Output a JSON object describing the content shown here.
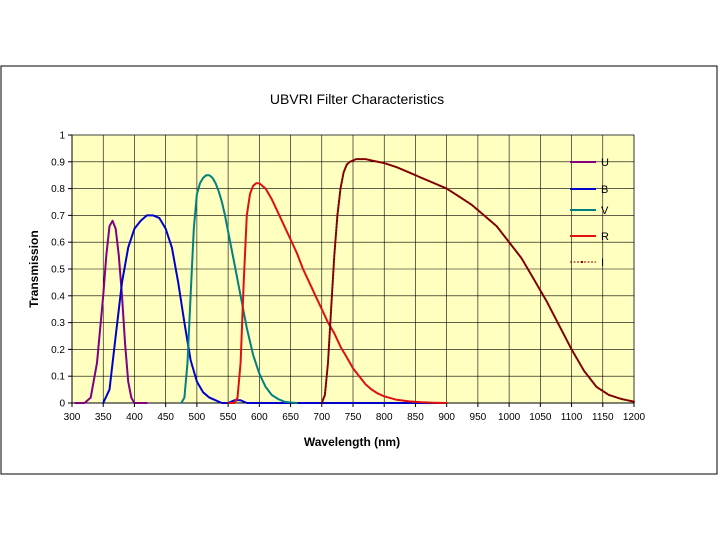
{
  "chart_data": {
    "type": "line",
    "title": "UBVRI Filter Characteristics",
    "xlabel": "Wavelength (nm)",
    "ylabel": "Transmission",
    "xlim": [
      300,
      1200
    ],
    "ylim": [
      0,
      1
    ],
    "x_ticks": [
      "300",
      "350",
      "400",
      "450",
      "500",
      "550",
      "600",
      "650",
      "700",
      "750",
      "800",
      "850",
      "900",
      "950",
      "1000",
      "1050",
      "1100",
      "1150",
      "1200"
    ],
    "y_ticks": [
      "0",
      "0.1",
      "0.2",
      "0.3",
      "0.4",
      "0.5",
      "0.6",
      "0.7",
      "0.8",
      "0.9",
      "1"
    ],
    "grid": true,
    "legend_position": "right",
    "series": [
      {
        "name": "U",
        "color": "#800080",
        "x": [
          305,
          320,
          330,
          340,
          350,
          355,
          360,
          365,
          370,
          375,
          380,
          385,
          390,
          395,
          400,
          410,
          420
        ],
        "y": [
          0,
          0,
          0.02,
          0.15,
          0.4,
          0.55,
          0.66,
          0.68,
          0.65,
          0.55,
          0.4,
          0.22,
          0.08,
          0.02,
          0,
          0,
          0
        ]
      },
      {
        "name": "B",
        "color": "#0000cc",
        "x": [
          350,
          360,
          370,
          380,
          390,
          400,
          410,
          420,
          430,
          440,
          450,
          460,
          470,
          480,
          490,
          500,
          510,
          520,
          530,
          540,
          550,
          560,
          570,
          580,
          600,
          700,
          800,
          900
        ],
        "y": [
          0,
          0.05,
          0.25,
          0.45,
          0.58,
          0.65,
          0.68,
          0.7,
          0.7,
          0.69,
          0.65,
          0.58,
          0.45,
          0.3,
          0.16,
          0.08,
          0.04,
          0.02,
          0.01,
          0,
          0,
          0.01,
          0.01,
          0,
          0,
          0,
          0,
          0
        ]
      },
      {
        "name": "V",
        "color": "#008080",
        "x": [
          475,
          480,
          485,
          490,
          495,
          500,
          505,
          510,
          515,
          520,
          525,
          530,
          535,
          540,
          545,
          550,
          560,
          570,
          580,
          590,
          600,
          610,
          620,
          630,
          640,
          650,
          660
        ],
        "y": [
          0,
          0.02,
          0.15,
          0.4,
          0.65,
          0.78,
          0.82,
          0.84,
          0.85,
          0.85,
          0.84,
          0.82,
          0.79,
          0.75,
          0.7,
          0.64,
          0.52,
          0.4,
          0.28,
          0.18,
          0.11,
          0.06,
          0.03,
          0.015,
          0.005,
          0.002,
          0
        ]
      },
      {
        "name": "R",
        "color": "#e01010",
        "x": [
          550,
          560,
          565,
          570,
          575,
          580,
          585,
          590,
          595,
          600,
          610,
          620,
          630,
          640,
          650,
          660,
          670,
          680,
          690,
          700,
          710,
          720,
          730,
          740,
          750,
          760,
          770,
          780,
          790,
          800,
          820,
          840,
          860,
          880,
          900
        ],
        "y": [
          0,
          0,
          0.02,
          0.15,
          0.45,
          0.7,
          0.78,
          0.81,
          0.82,
          0.82,
          0.8,
          0.76,
          0.71,
          0.66,
          0.61,
          0.56,
          0.5,
          0.45,
          0.4,
          0.35,
          0.3,
          0.26,
          0.21,
          0.17,
          0.13,
          0.1,
          0.07,
          0.05,
          0.035,
          0.025,
          0.012,
          0.006,
          0.003,
          0.001,
          0
        ]
      },
      {
        "name": "I",
        "color": "#800000",
        "x": [
          700,
          705,
          710,
          715,
          720,
          725,
          730,
          735,
          740,
          745,
          750,
          755,
          760,
          765,
          770,
          780,
          790,
          800,
          820,
          840,
          860,
          880,
          900,
          920,
          940,
          960,
          980,
          1000,
          1020,
          1040,
          1060,
          1080,
          1100,
          1120,
          1140,
          1160,
          1180,
          1200
        ],
        "y": [
          0,
          0.03,
          0.15,
          0.35,
          0.55,
          0.7,
          0.8,
          0.86,
          0.89,
          0.9,
          0.905,
          0.91,
          0.91,
          0.91,
          0.91,
          0.905,
          0.9,
          0.895,
          0.88,
          0.86,
          0.84,
          0.82,
          0.8,
          0.77,
          0.74,
          0.7,
          0.66,
          0.6,
          0.54,
          0.46,
          0.38,
          0.29,
          0.2,
          0.12,
          0.06,
          0.03,
          0.015,
          0.005
        ]
      }
    ]
  }
}
